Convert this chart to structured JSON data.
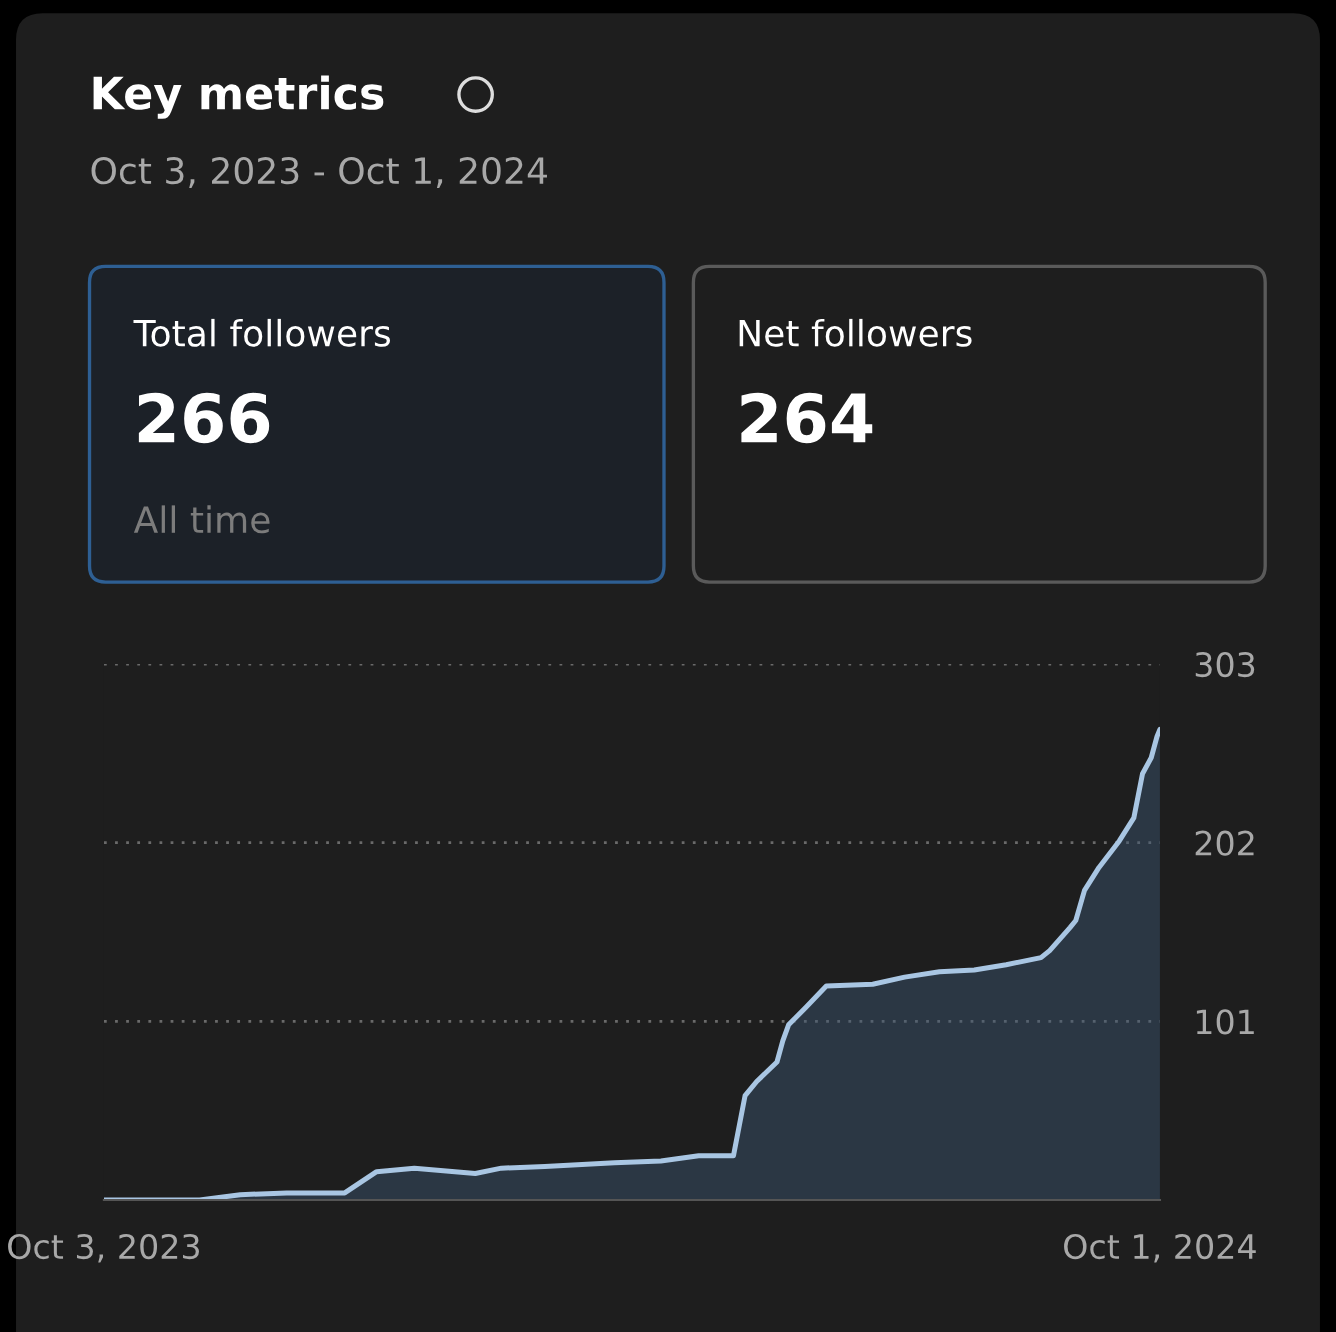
{
  "chart_data": {
    "type": "area",
    "title": "Key metrics",
    "subtitle": "Oct 3, 2023 - Oct 1, 2024",
    "annotations": [
      "Total followers",
      "266",
      "All time",
      "Net followers",
      "264"
    ],
    "x": [
      "2023-10-03",
      "2023-11-05",
      "2023-11-19",
      "2023-12-05",
      "2023-12-25",
      "2024-01-05",
      "2024-01-18",
      "2024-02-08",
      "2024-02-17",
      "2024-03-03",
      "2024-03-27",
      "2024-04-12",
      "2024-04-25",
      "2024-05-07",
      "2024-05-11",
      "2024-05-15",
      "2024-05-22",
      "2024-05-24",
      "2024-05-26",
      "2024-06-01",
      "2024-06-08",
      "2024-06-24",
      "2024-07-05",
      "2024-07-17",
      "2024-07-29",
      "2024-08-09",
      "2024-08-21",
      "2024-08-24",
      "2024-08-31",
      "2024-09-02",
      "2024-09-05",
      "2024-09-10",
      "2024-09-17",
      "2024-09-22",
      "2024-09-25",
      "2024-09-28",
      "2024-09-30",
      "2024-10-01"
    ],
    "series": [
      {
        "color": "#a9c6e3",
        "values": [
          0,
          0,
          3,
          4,
          4,
          16,
          18,
          15,
          18,
          19,
          21,
          22,
          25,
          25,
          59,
          67,
          78,
          90,
          99,
          109,
          121,
          122,
          126,
          129,
          130,
          133,
          137,
          141,
          154,
          158,
          175,
          188,
          203,
          216,
          241,
          250,
          262,
          266
        ]
      }
    ],
    "xlim": [
      "2023-10-03",
      "2024-10-01"
    ],
    "xticks": [
      {
        "value": "2023-10-03",
        "label": "Oct 3, 2023"
      },
      {
        "value": "2024-10-01",
        "label": "Oct 1, 2024"
      }
    ],
    "ylim": [
      0,
      303
    ],
    "yticks": [
      101,
      202,
      303
    ],
    "grid": "y",
    "legend": false
  }
}
